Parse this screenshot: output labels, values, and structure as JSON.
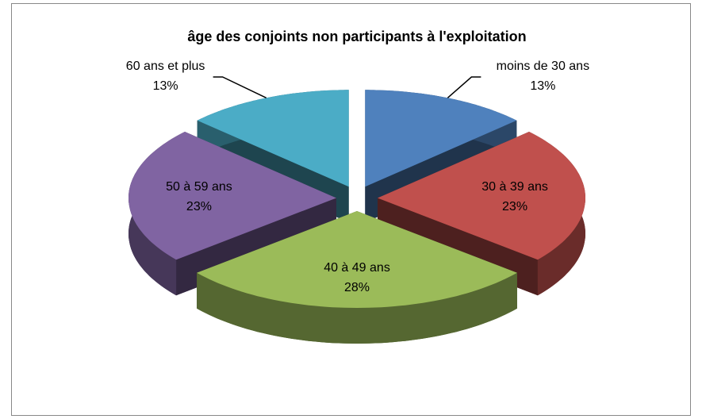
{
  "chart_data": {
    "type": "pie3d",
    "title": "âge des conjoints non participants à l'exploitation",
    "categories": [
      "moins de 30 ans",
      "30 à 39 ans",
      "40 à 49 ans",
      "50 à 59 ans",
      "60 ans et plus"
    ],
    "values": [
      13,
      23,
      28,
      23,
      13
    ],
    "value_labels": [
      "13%",
      "23%",
      "28%",
      "23%",
      "13%"
    ],
    "colors": [
      "#4f81bd",
      "#c0504d",
      "#9bbb59",
      "#8064a2",
      "#4bacc6"
    ]
  }
}
